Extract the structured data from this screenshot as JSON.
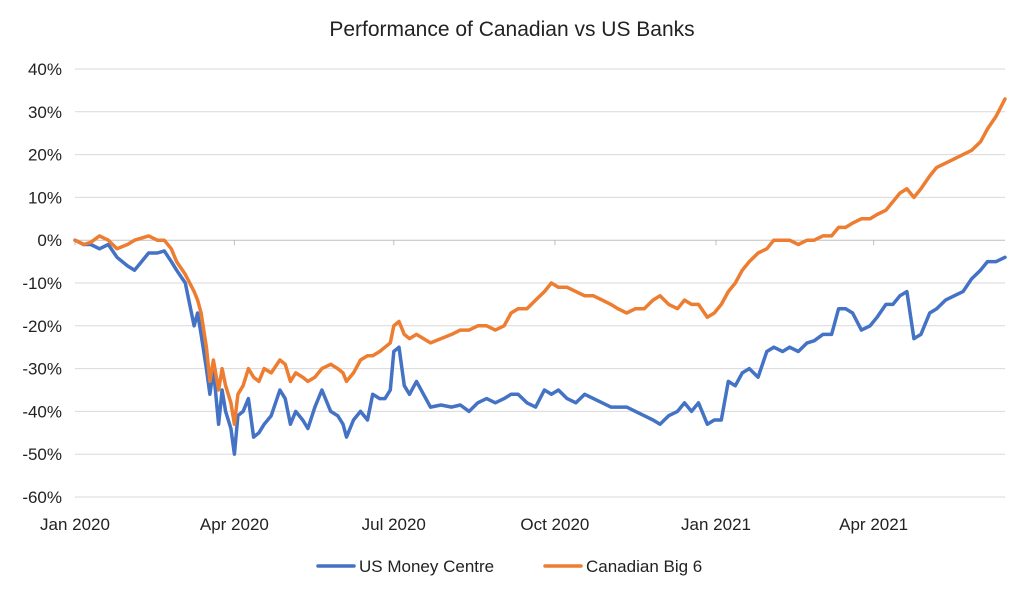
{
  "chart_data": {
    "type": "line",
    "title": "Performance of Canadian vs US Banks",
    "xlabel": "",
    "ylabel": "",
    "x_start": "2020-01-01",
    "x_end": "2021-06-15",
    "x_ticks": [
      {
        "date": "2020-01-01",
        "label": "Jan 2020"
      },
      {
        "date": "2020-04-01",
        "label": "Apr 2020"
      },
      {
        "date": "2020-07-01",
        "label": "Jul 2020"
      },
      {
        "date": "2020-10-01",
        "label": "Oct 2020"
      },
      {
        "date": "2021-01-01",
        "label": "Jan 2021"
      },
      {
        "date": "2021-04-01",
        "label": "Apr 2021"
      }
    ],
    "ylim": [
      -0.6,
      0.4
    ],
    "y_ticks": [
      {
        "value": 0.4,
        "label": "40%"
      },
      {
        "value": 0.3,
        "label": "30%"
      },
      {
        "value": 0.2,
        "label": "20%"
      },
      {
        "value": 0.1,
        "label": "10%"
      },
      {
        "value": 0.0,
        "label": "0%"
      },
      {
        "value": -0.1,
        "label": "-10%"
      },
      {
        "value": -0.2,
        "label": "-20%"
      },
      {
        "value": -0.3,
        "label": "-30%"
      },
      {
        "value": -0.4,
        "label": "-40%"
      },
      {
        "value": -0.5,
        "label": "-50%"
      },
      {
        "value": -0.6,
        "label": "-60%"
      }
    ],
    "grid": true,
    "legend_position": "bottom",
    "series": [
      {
        "name": "US Money Centre",
        "color": "#4472C4",
        "points": [
          [
            "2020-01-01",
            0.0
          ],
          [
            "2020-01-06",
            -0.01
          ],
          [
            "2020-01-10",
            -0.01
          ],
          [
            "2020-01-15",
            -0.02
          ],
          [
            "2020-01-20",
            -0.01
          ],
          [
            "2020-01-25",
            -0.04
          ],
          [
            "2020-01-31",
            -0.06
          ],
          [
            "2020-02-04",
            -0.07
          ],
          [
            "2020-02-08",
            -0.05
          ],
          [
            "2020-02-12",
            -0.03
          ],
          [
            "2020-02-17",
            -0.03
          ],
          [
            "2020-02-21",
            -0.025
          ],
          [
            "2020-02-25",
            -0.05
          ],
          [
            "2020-02-28",
            -0.07
          ],
          [
            "2020-03-04",
            -0.1
          ],
          [
            "2020-03-09",
            -0.2
          ],
          [
            "2020-03-11",
            -0.17
          ],
          [
            "2020-03-13",
            -0.22
          ],
          [
            "2020-03-16",
            -0.3
          ],
          [
            "2020-03-18",
            -0.36
          ],
          [
            "2020-03-20",
            -0.3
          ],
          [
            "2020-03-23",
            -0.43
          ],
          [
            "2020-03-25",
            -0.35
          ],
          [
            "2020-03-27",
            -0.4
          ],
          [
            "2020-03-30",
            -0.44
          ],
          [
            "2020-04-01",
            -0.5
          ],
          [
            "2020-04-03",
            -0.41
          ],
          [
            "2020-04-06",
            -0.4
          ],
          [
            "2020-04-09",
            -0.37
          ],
          [
            "2020-04-12",
            -0.46
          ],
          [
            "2020-04-15",
            -0.45
          ],
          [
            "2020-04-18",
            -0.43
          ],
          [
            "2020-04-22",
            -0.41
          ],
          [
            "2020-04-27",
            -0.35
          ],
          [
            "2020-04-30",
            -0.37
          ],
          [
            "2020-05-03",
            -0.43
          ],
          [
            "2020-05-06",
            -0.4
          ],
          [
            "2020-05-10",
            -0.42
          ],
          [
            "2020-05-13",
            -0.44
          ],
          [
            "2020-05-17",
            -0.39
          ],
          [
            "2020-05-21",
            -0.35
          ],
          [
            "2020-05-26",
            -0.4
          ],
          [
            "2020-05-30",
            -0.41
          ],
          [
            "2020-06-02",
            -0.43
          ],
          [
            "2020-06-04",
            -0.46
          ],
          [
            "2020-06-08",
            -0.42
          ],
          [
            "2020-06-12",
            -0.4
          ],
          [
            "2020-06-16",
            -0.42
          ],
          [
            "2020-06-19",
            -0.36
          ],
          [
            "2020-06-23",
            -0.37
          ],
          [
            "2020-06-26",
            -0.37
          ],
          [
            "2020-06-29",
            -0.35
          ],
          [
            "2020-07-01",
            -0.26
          ],
          [
            "2020-07-04",
            -0.25
          ],
          [
            "2020-07-07",
            -0.34
          ],
          [
            "2020-07-10",
            -0.36
          ],
          [
            "2020-07-14",
            -0.33
          ],
          [
            "2020-07-18",
            -0.36
          ],
          [
            "2020-07-22",
            -0.39
          ],
          [
            "2020-07-28",
            -0.385
          ],
          [
            "2020-08-03",
            -0.39
          ],
          [
            "2020-08-08",
            -0.385
          ],
          [
            "2020-08-13",
            -0.4
          ],
          [
            "2020-08-18",
            -0.38
          ],
          [
            "2020-08-23",
            -0.37
          ],
          [
            "2020-08-28",
            -0.38
          ],
          [
            "2020-09-02",
            -0.37
          ],
          [
            "2020-09-06",
            -0.36
          ],
          [
            "2020-09-10",
            -0.36
          ],
          [
            "2020-09-15",
            -0.38
          ],
          [
            "2020-09-20",
            -0.39
          ],
          [
            "2020-09-25",
            -0.35
          ],
          [
            "2020-09-29",
            -0.36
          ],
          [
            "2020-10-03",
            -0.35
          ],
          [
            "2020-10-08",
            -0.37
          ],
          [
            "2020-10-13",
            -0.38
          ],
          [
            "2020-10-18",
            -0.36
          ],
          [
            "2020-10-23",
            -0.37
          ],
          [
            "2020-10-28",
            -0.38
          ],
          [
            "2020-11-02",
            -0.39
          ],
          [
            "2020-11-06",
            -0.39
          ],
          [
            "2020-11-11",
            -0.39
          ],
          [
            "2020-11-16",
            -0.4
          ],
          [
            "2020-11-21",
            -0.41
          ],
          [
            "2020-11-26",
            -0.42
          ],
          [
            "2020-11-30",
            -0.43
          ],
          [
            "2020-12-05",
            -0.41
          ],
          [
            "2020-12-10",
            -0.4
          ],
          [
            "2020-12-14",
            -0.38
          ],
          [
            "2020-12-18",
            -0.4
          ],
          [
            "2020-12-22",
            -0.38
          ],
          [
            "2020-12-27",
            -0.43
          ],
          [
            "2020-12-31",
            -0.42
          ],
          [
            "2021-01-04",
            -0.42
          ],
          [
            "2021-01-08",
            -0.33
          ],
          [
            "2021-01-12",
            -0.34
          ],
          [
            "2021-01-16",
            -0.31
          ],
          [
            "2021-01-20",
            -0.3
          ],
          [
            "2021-01-25",
            -0.32
          ],
          [
            "2021-01-30",
            -0.26
          ],
          [
            "2021-02-03",
            -0.25
          ],
          [
            "2021-02-08",
            -0.26
          ],
          [
            "2021-02-12",
            -0.25
          ],
          [
            "2021-02-17",
            -0.26
          ],
          [
            "2021-02-22",
            -0.24
          ],
          [
            "2021-02-26",
            -0.235
          ],
          [
            "2021-03-03",
            -0.22
          ],
          [
            "2021-03-08",
            -0.22
          ],
          [
            "2021-03-12",
            -0.16
          ],
          [
            "2021-03-16",
            -0.16
          ],
          [
            "2021-03-20",
            -0.17
          ],
          [
            "2021-03-25",
            -0.21
          ],
          [
            "2021-03-30",
            -0.2
          ],
          [
            "2021-04-03",
            -0.18
          ],
          [
            "2021-04-08",
            -0.15
          ],
          [
            "2021-04-12",
            -0.15
          ],
          [
            "2021-04-16",
            -0.13
          ],
          [
            "2021-04-20",
            -0.12
          ],
          [
            "2021-04-24",
            -0.23
          ],
          [
            "2021-04-28",
            -0.22
          ],
          [
            "2021-05-03",
            -0.17
          ],
          [
            "2021-05-07",
            -0.16
          ],
          [
            "2021-05-12",
            -0.14
          ],
          [
            "2021-05-17",
            -0.13
          ],
          [
            "2021-05-22",
            -0.12
          ],
          [
            "2021-05-27",
            -0.09
          ],
          [
            "2021-06-01",
            -0.07
          ],
          [
            "2021-06-05",
            -0.05
          ],
          [
            "2021-06-10",
            -0.05
          ],
          [
            "2021-06-15",
            -0.04
          ]
        ]
      },
      {
        "name": "Canadian Big 6",
        "color": "#ED7D31",
        "points": [
          [
            "2020-01-01",
            0.0
          ],
          [
            "2020-01-06",
            -0.01
          ],
          [
            "2020-01-10",
            -0.005
          ],
          [
            "2020-01-15",
            0.01
          ],
          [
            "2020-01-20",
            0.0
          ],
          [
            "2020-01-25",
            -0.02
          ],
          [
            "2020-01-31",
            -0.01
          ],
          [
            "2020-02-04",
            0.0
          ],
          [
            "2020-02-08",
            0.005
          ],
          [
            "2020-02-12",
            0.01
          ],
          [
            "2020-02-17",
            0.0
          ],
          [
            "2020-02-21",
            0.0
          ],
          [
            "2020-02-25",
            -0.02
          ],
          [
            "2020-02-28",
            -0.05
          ],
          [
            "2020-03-04",
            -0.08
          ],
          [
            "2020-03-09",
            -0.12
          ],
          [
            "2020-03-11",
            -0.14
          ],
          [
            "2020-03-13",
            -0.17
          ],
          [
            "2020-03-16",
            -0.25
          ],
          [
            "2020-03-18",
            -0.33
          ],
          [
            "2020-03-20",
            -0.28
          ],
          [
            "2020-03-23",
            -0.35
          ],
          [
            "2020-03-25",
            -0.3
          ],
          [
            "2020-03-27",
            -0.34
          ],
          [
            "2020-03-30",
            -0.38
          ],
          [
            "2020-04-01",
            -0.43
          ],
          [
            "2020-04-03",
            -0.36
          ],
          [
            "2020-04-06",
            -0.34
          ],
          [
            "2020-04-09",
            -0.3
          ],
          [
            "2020-04-12",
            -0.32
          ],
          [
            "2020-04-15",
            -0.33
          ],
          [
            "2020-04-18",
            -0.3
          ],
          [
            "2020-04-22",
            -0.31
          ],
          [
            "2020-04-27",
            -0.28
          ],
          [
            "2020-04-30",
            -0.29
          ],
          [
            "2020-05-03",
            -0.33
          ],
          [
            "2020-05-06",
            -0.31
          ],
          [
            "2020-05-10",
            -0.32
          ],
          [
            "2020-05-13",
            -0.33
          ],
          [
            "2020-05-17",
            -0.32
          ],
          [
            "2020-05-21",
            -0.3
          ],
          [
            "2020-05-26",
            -0.29
          ],
          [
            "2020-05-30",
            -0.3
          ],
          [
            "2020-06-02",
            -0.31
          ],
          [
            "2020-06-04",
            -0.33
          ],
          [
            "2020-06-08",
            -0.31
          ],
          [
            "2020-06-12",
            -0.28
          ],
          [
            "2020-06-16",
            -0.27
          ],
          [
            "2020-06-19",
            -0.27
          ],
          [
            "2020-06-23",
            -0.26
          ],
          [
            "2020-06-26",
            -0.25
          ],
          [
            "2020-06-29",
            -0.24
          ],
          [
            "2020-07-01",
            -0.2
          ],
          [
            "2020-07-04",
            -0.19
          ],
          [
            "2020-07-07",
            -0.22
          ],
          [
            "2020-07-10",
            -0.23
          ],
          [
            "2020-07-14",
            -0.22
          ],
          [
            "2020-07-18",
            -0.23
          ],
          [
            "2020-07-22",
            -0.24
          ],
          [
            "2020-07-28",
            -0.23
          ],
          [
            "2020-08-03",
            -0.22
          ],
          [
            "2020-08-08",
            -0.21
          ],
          [
            "2020-08-13",
            -0.21
          ],
          [
            "2020-08-18",
            -0.2
          ],
          [
            "2020-08-23",
            -0.2
          ],
          [
            "2020-08-28",
            -0.21
          ],
          [
            "2020-09-02",
            -0.2
          ],
          [
            "2020-09-06",
            -0.17
          ],
          [
            "2020-09-10",
            -0.16
          ],
          [
            "2020-09-15",
            -0.16
          ],
          [
            "2020-09-20",
            -0.14
          ],
          [
            "2020-09-25",
            -0.12
          ],
          [
            "2020-09-29",
            -0.1
          ],
          [
            "2020-10-03",
            -0.11
          ],
          [
            "2020-10-08",
            -0.11
          ],
          [
            "2020-10-13",
            -0.12
          ],
          [
            "2020-10-18",
            -0.13
          ],
          [
            "2020-10-23",
            -0.13
          ],
          [
            "2020-10-28",
            -0.14
          ],
          [
            "2020-11-02",
            -0.15
          ],
          [
            "2020-11-06",
            -0.16
          ],
          [
            "2020-11-11",
            -0.17
          ],
          [
            "2020-11-16",
            -0.16
          ],
          [
            "2020-11-21",
            -0.16
          ],
          [
            "2020-11-26",
            -0.14
          ],
          [
            "2020-11-30",
            -0.13
          ],
          [
            "2020-12-05",
            -0.15
          ],
          [
            "2020-12-10",
            -0.16
          ],
          [
            "2020-12-14",
            -0.14
          ],
          [
            "2020-12-18",
            -0.15
          ],
          [
            "2020-12-22",
            -0.15
          ],
          [
            "2020-12-27",
            -0.18
          ],
          [
            "2020-12-31",
            -0.17
          ],
          [
            "2021-01-04",
            -0.15
          ],
          [
            "2021-01-08",
            -0.12
          ],
          [
            "2021-01-12",
            -0.1
          ],
          [
            "2021-01-16",
            -0.07
          ],
          [
            "2021-01-20",
            -0.05
          ],
          [
            "2021-01-25",
            -0.03
          ],
          [
            "2021-01-30",
            -0.02
          ],
          [
            "2021-02-03",
            0.0
          ],
          [
            "2021-02-08",
            0.0
          ],
          [
            "2021-02-12",
            0.0
          ],
          [
            "2021-02-17",
            -0.01
          ],
          [
            "2021-02-22",
            0.0
          ],
          [
            "2021-02-26",
            0.0
          ],
          [
            "2021-03-03",
            0.01
          ],
          [
            "2021-03-08",
            0.01
          ],
          [
            "2021-03-12",
            0.03
          ],
          [
            "2021-03-16",
            0.03
          ],
          [
            "2021-03-20",
            0.04
          ],
          [
            "2021-03-25",
            0.05
          ],
          [
            "2021-03-30",
            0.05
          ],
          [
            "2021-04-03",
            0.06
          ],
          [
            "2021-04-08",
            0.07
          ],
          [
            "2021-04-12",
            0.09
          ],
          [
            "2021-04-16",
            0.11
          ],
          [
            "2021-04-20",
            0.12
          ],
          [
            "2021-04-24",
            0.1
          ],
          [
            "2021-04-28",
            0.12
          ],
          [
            "2021-05-03",
            0.15
          ],
          [
            "2021-05-07",
            0.17
          ],
          [
            "2021-05-12",
            0.18
          ],
          [
            "2021-05-17",
            0.19
          ],
          [
            "2021-05-22",
            0.2
          ],
          [
            "2021-05-27",
            0.21
          ],
          [
            "2021-06-01",
            0.23
          ],
          [
            "2021-06-05",
            0.26
          ],
          [
            "2021-06-10",
            0.29
          ],
          [
            "2021-06-15",
            0.33
          ]
        ]
      }
    ]
  }
}
